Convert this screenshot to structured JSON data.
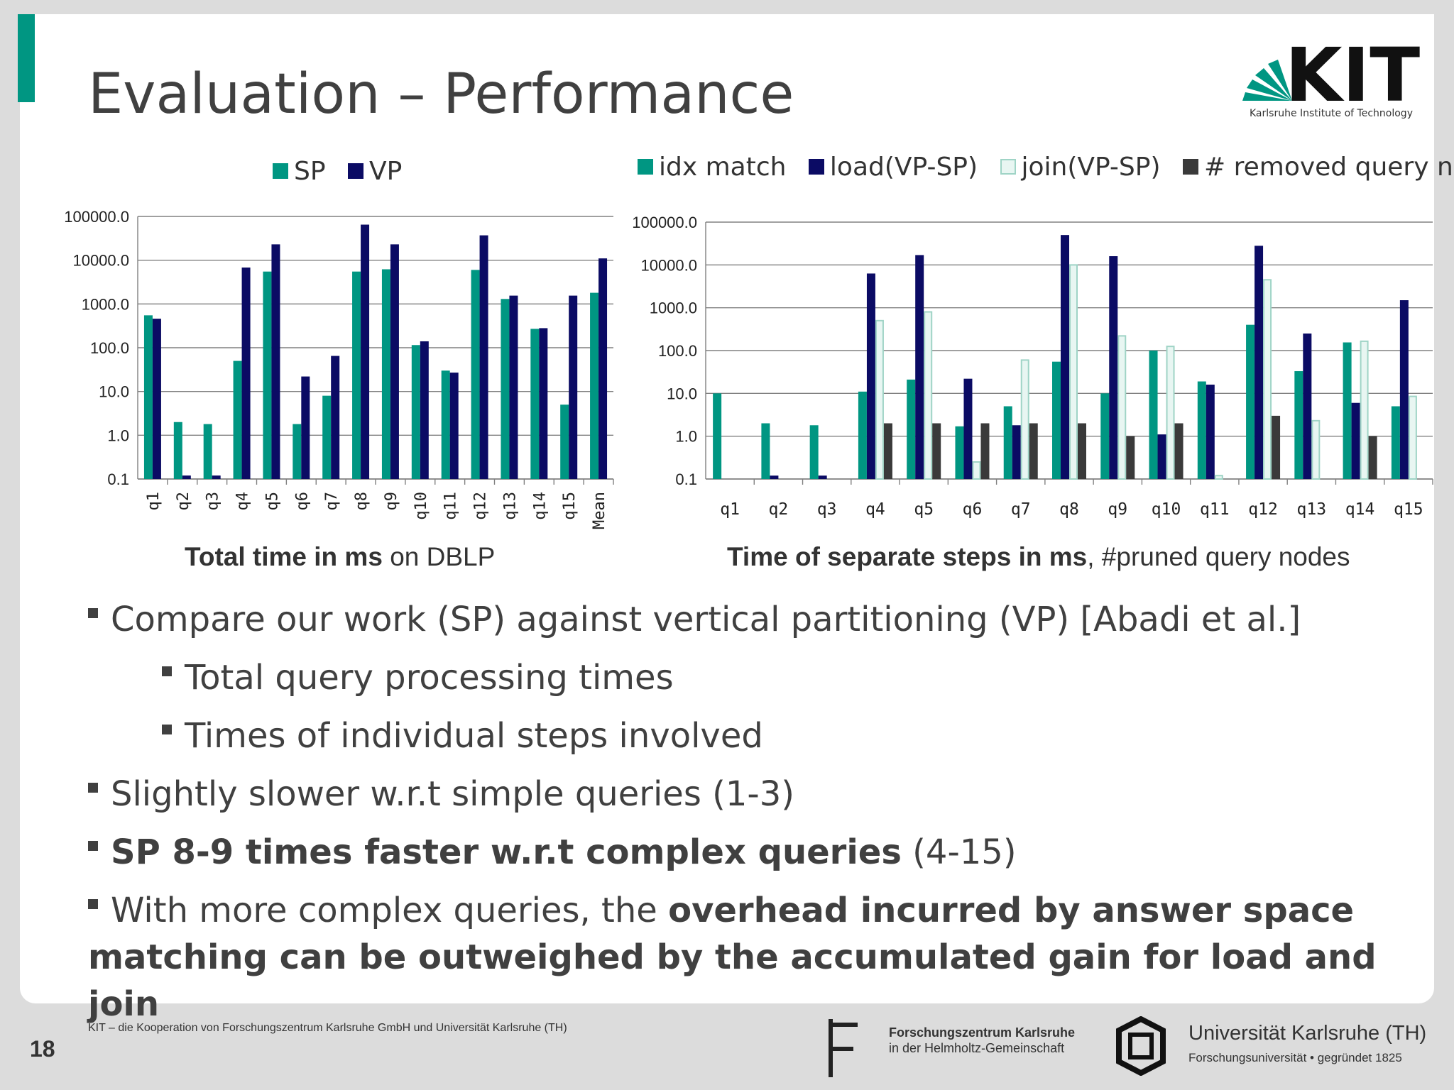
{
  "slide": {
    "title": "Evaluation – Performance",
    "page_number": "18",
    "footer": "KIT – die Kooperation von Forschungszentrum Karlsruhe GmbH und Universität Karlsruhe (TH)",
    "kit_logo_text": "KIT",
    "kit_logo_subtitle": "Karlsruhe Institute of Technology",
    "fz_line1": "Forschungszentrum Karlsruhe",
    "fz_line2": "in der Helmholtz-Gemeinschaft",
    "uni_line1": "Universität Karlsruhe (TH)",
    "uni_line2": "Forschungsuniversität • gegründet 1825"
  },
  "colors": {
    "sp": "#009682",
    "vp": "#0b0b64",
    "idx": "#009682",
    "load": "#0b0b64",
    "join_fill": "#e8f6f2",
    "join_stroke": "#9fd4c6",
    "removed": "#3a3a3a",
    "text": "#404040"
  },
  "captions": {
    "left_bold": "Total time in ms",
    "left_rest": " on DBLP",
    "right_bold": "Time of separate steps in ms",
    "right_rest": ", #pruned query nodes"
  },
  "bullets": {
    "b1": "Compare our work (SP) against vertical partitioning (VP) [Abadi et al.]",
    "b1a": "Total query processing times",
    "b1b": "Times of individual steps involved",
    "b2": "Slightly slower w.r.t simple queries (1-3)",
    "b3_bold": "SP 8-9 times faster w.r.t complex queries",
    "b3_rest": " (4-15)",
    "b4_pre": "With more complex queries, the ",
    "b4_bold": "overhead incurred by answer space matching can be outweighed by the accumulated gain for load and join"
  },
  "chart_data": [
    {
      "type": "bar",
      "scale": "log",
      "ylim": [
        0.1,
        100000
      ],
      "y_tick_labels": [
        "0.1",
        "1.0",
        "10.0",
        "100.0",
        "1000.0",
        "10000.0",
        "100000.0"
      ],
      "grid": true,
      "legend": "top",
      "categories": [
        "q1",
        "q2",
        "q3",
        "q4",
        "q5",
        "q6",
        "q7",
        "q8",
        "q9",
        "q10",
        "q11",
        "q12",
        "q13",
        "q14",
        "q15",
        "Mean"
      ],
      "series": [
        {
          "name": "SP",
          "values": [
            550,
            2,
            1.8,
            50,
            5500,
            1.8,
            8,
            5500,
            6200,
            115,
            30,
            6000,
            1300,
            270,
            5,
            1800
          ]
        },
        {
          "name": "VP",
          "values": [
            460,
            0.12,
            0.12,
            6800,
            23000,
            22,
            65,
            65000,
            23000,
            140,
            27,
            37000,
            1550,
            280,
            1550,
            11000
          ]
        }
      ]
    },
    {
      "type": "bar",
      "scale": "log",
      "ylim": [
        0.1,
        100000
      ],
      "y_tick_labels": [
        "0.1",
        "1.0",
        "10.0",
        "100.0",
        "1000.0",
        "10000.0",
        "100000.0"
      ],
      "grid": true,
      "legend": "top",
      "categories": [
        "q1",
        "q2",
        "q3",
        "q4",
        "q5",
        "q6",
        "q7",
        "q8",
        "q9",
        "q10",
        "q11",
        "q12",
        "q13",
        "q14",
        "q15"
      ],
      "series": [
        {
          "name": "idx match",
          "values": [
            10,
            2,
            1.8,
            11,
            21,
            1.7,
            5,
            55,
            10,
            100,
            19,
            400,
            33,
            155,
            5
          ]
        },
        {
          "name": "load(VP-SP)",
          "values": [
            null,
            0.12,
            0.12,
            6300,
            17000,
            22,
            1.8,
            50000,
            16000,
            1.1,
            16,
            28000,
            250,
            6,
            1500
          ]
        },
        {
          "name": "join(VP-SP)",
          "values": [
            null,
            null,
            null,
            500,
            800,
            0.25,
            60,
            10000,
            220,
            125,
            0.12,
            4500,
            2.3,
            165,
            8.5
          ]
        },
        {
          "name": "# removed query nodes",
          "values": [
            null,
            null,
            null,
            2,
            2,
            2,
            2,
            2,
            1,
            2,
            null,
            3,
            null,
            1,
            null
          ]
        }
      ]
    }
  ]
}
